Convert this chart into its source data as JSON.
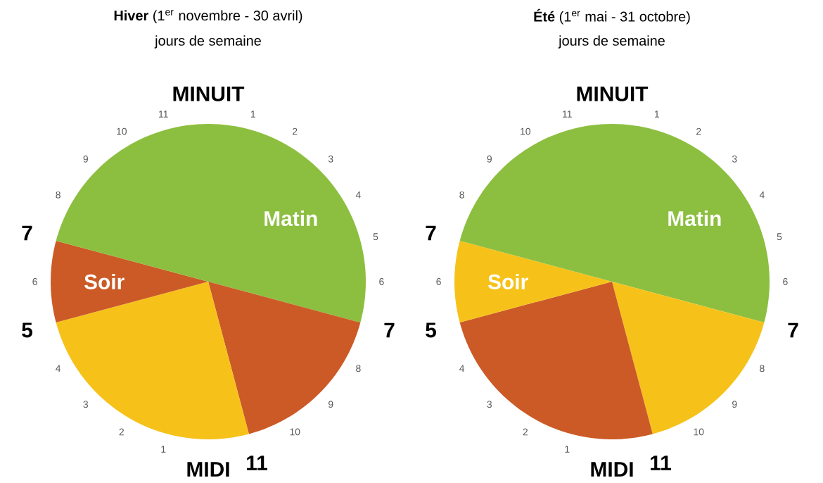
{
  "chart_data": [
    {
      "type": "pie",
      "title": "**Hiver** (1$^{er}$ novembre - 30 avril)",
      "subtitle": "jours de semaine",
      "categories": [
        "Matin",
        null,
        null,
        "Soir",
        null
      ],
      "values": [
        29.17,
        16.67,
        25,
        8.33,
        20.83
      ],
      "colors": [
        "#8cbf3f",
        "#cc5a26",
        "#f6c21a",
        "#cc5a26",
        "#8cbf3f"
      ],
      "annotations": [
        "MINUIT",
        "1",
        "2",
        "3",
        "4",
        "5",
        "6",
        "7",
        "8",
        "9",
        "10",
        "11",
        "MIDI",
        "1",
        "2",
        "3",
        "4",
        "5",
        "6",
        "7",
        "8",
        "9",
        "10",
        "11"
      ]
    },
    {
      "type": "pie",
      "title": "**Été** (1$^{er}$ mai - 31 octobre)",
      "subtitle": "jours de semaine",
      "categories": [
        "Matin",
        null,
        null,
        "Soir",
        null
      ],
      "values": [
        29.17,
        16.67,
        25,
        8.33,
        20.83
      ],
      "colors": [
        "#8cbf3f",
        "#f6c21a",
        "#cc5a26",
        "#f6c21a",
        "#8cbf3f"
      ],
      "annotations": [
        "MINUIT",
        "1",
        "2",
        "3",
        "4",
        "5",
        "6",
        "7",
        "8",
        "9",
        "10",
        "11",
        "MIDI",
        "1",
        "2",
        "3",
        "4",
        "5",
        "6",
        "7",
        "8",
        "9",
        "10",
        "11"
      ]
    }
  ]
}
